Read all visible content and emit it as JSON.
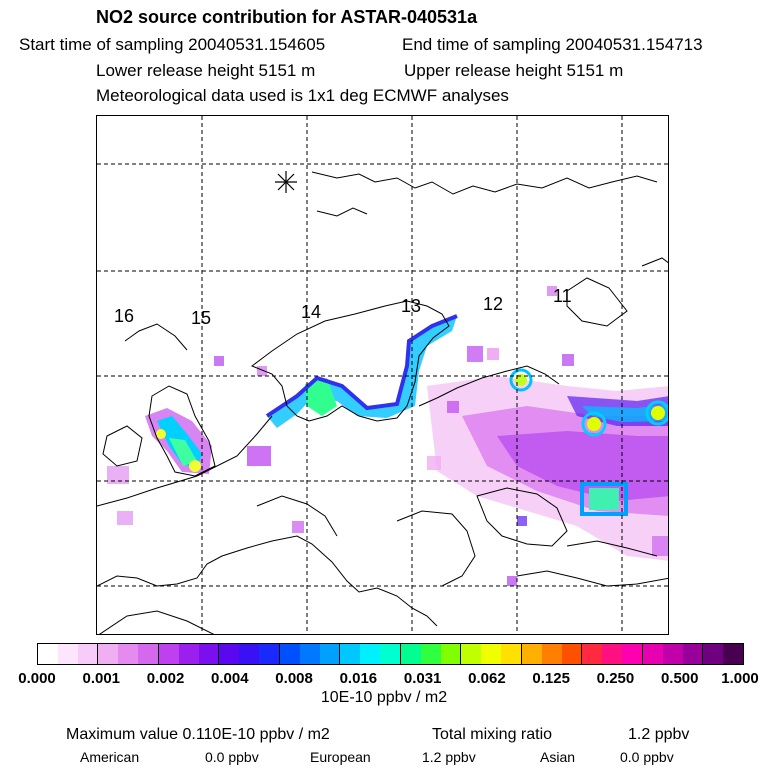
{
  "header": {
    "title": "NO2 source contribution for ASTAR-040531a",
    "start_time": "Start time of sampling 20040531.154605",
    "end_time": "End time of sampling 20040531.154713",
    "lower_height": "Lower release height 5151 m",
    "upper_height": "Upper release height 5151 m",
    "met_data": "Meteorological data used is 1x1 deg ECMWF analyses"
  },
  "map": {
    "time_labels": [
      "16",
      "15",
      "14",
      "13",
      "12",
      "11"
    ],
    "release_marker": "asterisk-release-point",
    "grid_color": "#000000",
    "coast_color": "#000000"
  },
  "colorbar": {
    "colors": [
      "#ffffff",
      "#fde6fd",
      "#f8ccf8",
      "#f0aef3",
      "#e58bf0",
      "#d569ee",
      "#bf40ee",
      "#9b20ee",
      "#7b10ee",
      "#5a08f0",
      "#3a10f5",
      "#1a2aff",
      "#0050ff",
      "#0078ff",
      "#00a0ff",
      "#00c8ff",
      "#00f0ff",
      "#00ffd0",
      "#00ff90",
      "#30ff40",
      "#80ff00",
      "#c0ff00",
      "#f0ff00",
      "#ffe000",
      "#ffb000",
      "#ff8000",
      "#ff5000",
      "#ff2a40",
      "#ff1080",
      "#ff00b0",
      "#e800b0",
      "#c000a8",
      "#98009a",
      "#700080",
      "#4a0050"
    ],
    "tick_labels": [
      "0.000",
      "0.001",
      "0.002",
      "0.004",
      "0.008",
      "0.016",
      "0.031",
      "0.062",
      "0.125",
      "0.250",
      "0.500",
      "1.000"
    ],
    "unit": "10E-10 ppbv / m2"
  },
  "stats": {
    "max_label": "Maximum value  0.110E-10 ppbv / m2",
    "total_label": "Total mixing ratio",
    "total_value": "1.2 ppbv",
    "american_label": "American",
    "american_value": "0.0 ppbv",
    "european_label": "European",
    "european_value": "1.2 ppbv",
    "asian_label": "Asian",
    "asian_value": "0.0 ppbv"
  }
}
